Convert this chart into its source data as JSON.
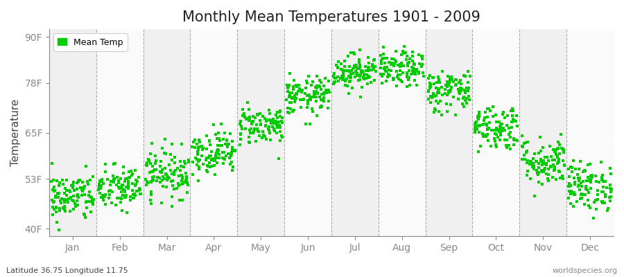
{
  "title": "Monthly Mean Temperatures 1901 - 2009",
  "ylabel": "Temperature",
  "ylabel_fontsize": 11,
  "title_fontsize": 15,
  "legend_label": "Mean Temp",
  "footer_left": "Latitude 36.75 Longitude 11.75",
  "footer_right": "worldspecies.org",
  "month_labels": [
    "Jan",
    "Feb",
    "Mar",
    "Apr",
    "May",
    "Jun",
    "Jul",
    "Aug",
    "Sep",
    "Oct",
    "Nov",
    "Dec"
  ],
  "ytick_labels": [
    "40F",
    "53F",
    "65F",
    "78F",
    "90F"
  ],
  "ytick_values": [
    40,
    53,
    65,
    78,
    90
  ],
  "ylim": [
    38,
    92
  ],
  "xlim": [
    -0.5,
    11.5
  ],
  "num_years": 109,
  "dot_color": "#00cc00",
  "dot_size": 6,
  "background_color": "#ffffff",
  "band_colors": [
    "#f0f0f0",
    "#fafafa"
  ],
  "monthly_mean_F": [
    48.2,
    50.5,
    54.5,
    60.0,
    67.0,
    74.5,
    81.0,
    81.5,
    76.0,
    66.5,
    57.5,
    51.0
  ],
  "monthly_std_F": [
    3.2,
    3.0,
    3.2,
    2.8,
    2.5,
    2.5,
    2.3,
    2.3,
    2.8,
    3.0,
    3.2,
    3.2
  ]
}
